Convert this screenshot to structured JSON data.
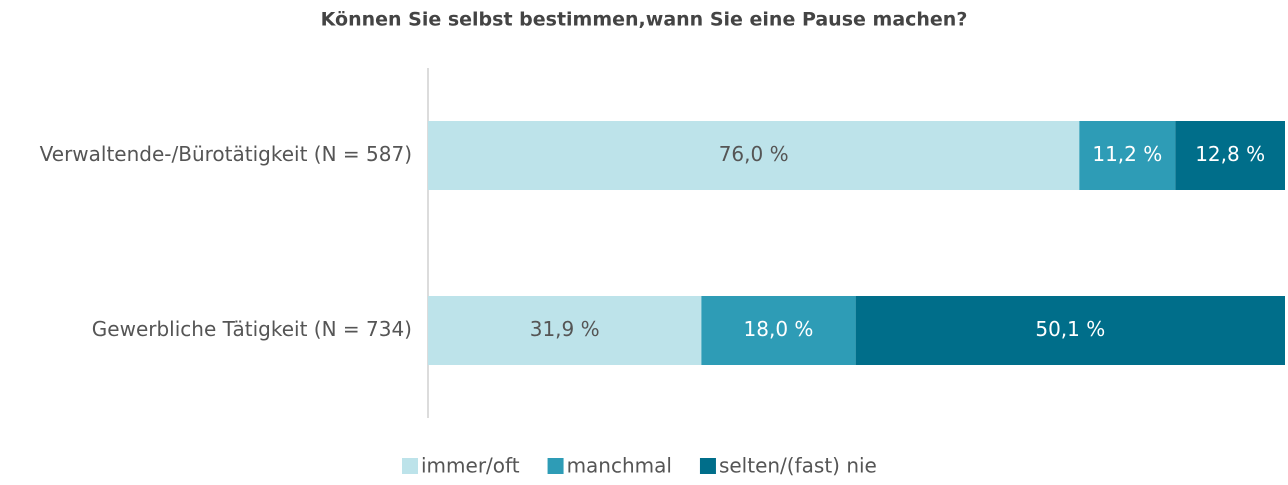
{
  "chart_data": {
    "type": "stacked_bar_horizontal",
    "title": "Können Sie selbst bestimmen,wann Sie eine Pause machen?",
    "categories": [
      "Verwaltende-/Bürotätigkeit (N = 587)",
      "Gewerbliche Tätigkeit (N = 734)"
    ],
    "xlim": [
      0,
      100
    ],
    "legend": "bottom",
    "series": [
      {
        "name": "immer/oft",
        "color": "#bde3ea",
        "values": [
          76.0,
          31.9
        ],
        "value_labels": [
          "76,0 %",
          "31,9 %"
        ]
      },
      {
        "name": "manchmal",
        "color": "#2e9cb6",
        "values": [
          11.2,
          18.0
        ],
        "value_labels": [
          "11,2 %",
          "18,0 %"
        ]
      },
      {
        "name": "selten/(fast) nie",
        "color": "#006e8a",
        "values": [
          12.8,
          50.1
        ],
        "value_labels": [
          "12,8 %",
          "50,1 %"
        ]
      }
    ]
  }
}
